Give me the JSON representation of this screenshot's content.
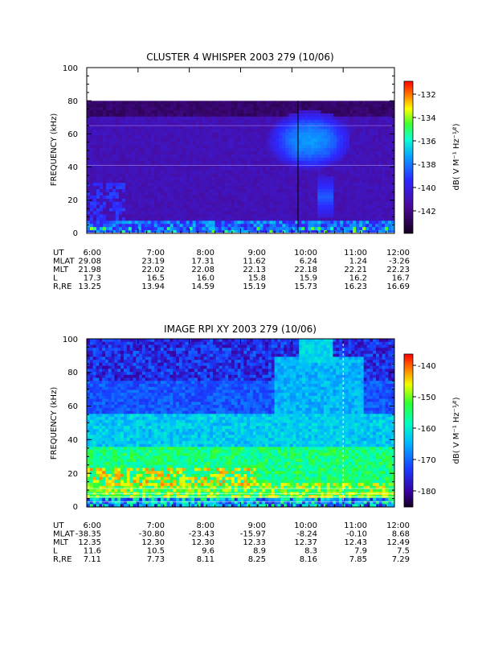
{
  "chart_data": [
    {
      "type": "heatmap",
      "title": "CLUSTER 4 WHISPER 2003 279 (10/06)",
      "ylabel": "FREQUENCY (kHz)",
      "ylim": [
        0,
        100
      ],
      "yticks": [
        "0",
        "20",
        "40",
        "60",
        "80",
        "100"
      ],
      "xlim": [
        "6:00",
        "12:00"
      ],
      "colorbar": {
        "label": "dB( V M⁻¹ Hz⁻¹⁄²)",
        "ticks": [
          "-132",
          "-134",
          "-136",
          "-138",
          "-140",
          "-142"
        ],
        "range": [
          -144,
          -131
        ]
      },
      "data_top_khz": 80,
      "ephemeris": {
        "labels": [
          "UT",
          "MLAT",
          "MLT",
          "L",
          "R,RE"
        ],
        "columns": [
          [
            "6:00",
            "29.08",
            "21.98",
            "17.3",
            "13.25"
          ],
          [
            "7:00",
            "23.19",
            "22.02",
            "16.5",
            "13.94"
          ],
          [
            "8:00",
            "17.31",
            "22.08",
            "16.0",
            "14.59"
          ],
          [
            "9:00",
            "11.62",
            "22.13",
            "15.8",
            "15.19"
          ],
          [
            "10:00",
            "6.24",
            "22.18",
            "15.9",
            "15.73"
          ],
          [
            "11:00",
            "1.24",
            "22.21",
            "16.2",
            "16.23"
          ],
          [
            "12:00",
            "-3.26",
            "22.23",
            "16.7",
            "16.69"
          ]
        ]
      }
    },
    {
      "type": "heatmap",
      "title": "IMAGE RPI XY 2003 279 (10/06)",
      "ylabel": "FREQUENCY (kHz)",
      "ylim": [
        0,
        100
      ],
      "yticks": [
        "0",
        "20",
        "40",
        "60",
        "80",
        "100"
      ],
      "xlim": [
        "6:00",
        "12:00"
      ],
      "colorbar": {
        "label": "dB( V M⁻¹ Hz⁻¹⁄²)",
        "ticks": [
          "-140",
          "-150",
          "-160",
          "-170",
          "-180"
        ],
        "range": [
          -185,
          -136
        ]
      },
      "ephemeris": {
        "labels": [
          "UT",
          "MLAT",
          "MLT",
          "L",
          "R,RE"
        ],
        "columns": [
          [
            "6:00",
            "-38.35",
            "12.35",
            "11.6",
            "7.11"
          ],
          [
            "7:00",
            "-30.80",
            "12.30",
            "10.5",
            "7.73"
          ],
          [
            "8:00",
            "-23.43",
            "12.30",
            "9.6",
            "8.11"
          ],
          [
            "9:00",
            "-15.97",
            "12.33",
            "8.9",
            "8.25"
          ],
          [
            "10:00",
            "-8.24",
            "12.37",
            "8.3",
            "8.16"
          ],
          [
            "11:00",
            "-0.10",
            "12.43",
            "7.9",
            "7.85"
          ],
          [
            "12:00",
            "8.68",
            "12.49",
            "7.5",
            "7.29"
          ]
        ]
      }
    }
  ]
}
